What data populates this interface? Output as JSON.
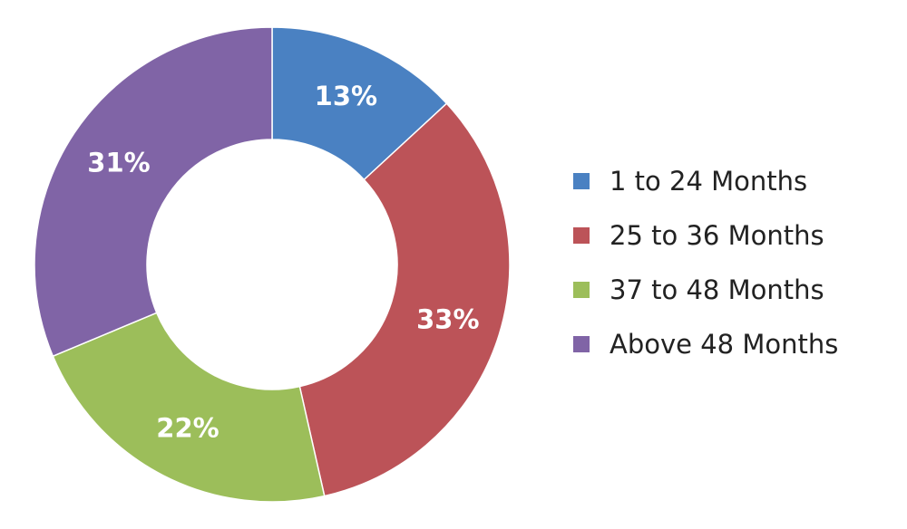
{
  "chart_data": {
    "type": "pie",
    "style": "donut",
    "categories": [
      "1 to 24 Months",
      "25 to 36 Months",
      "37 to 48 Months",
      "Above 48 Months"
    ],
    "values": [
      13,
      33,
      22,
      31
    ],
    "value_labels": [
      "13%",
      "33%",
      "22%",
      "31%"
    ],
    "colors": [
      "#4a81c2",
      "#bc5358",
      "#9cbe5a",
      "#8064a6"
    ],
    "legend_position": "right",
    "start_angle": "12 o'clock",
    "direction": "clockwise"
  }
}
